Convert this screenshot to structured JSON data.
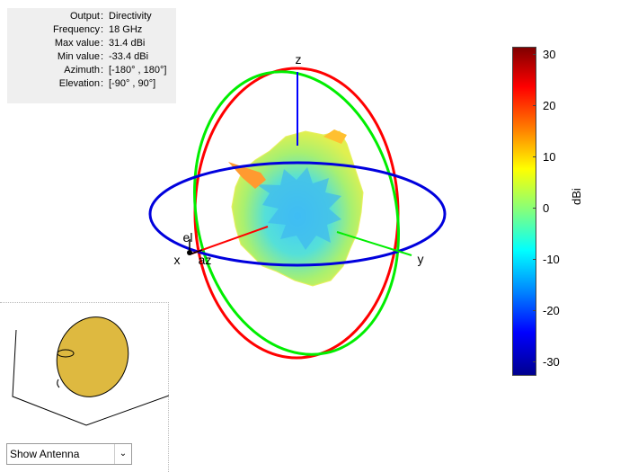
{
  "info": {
    "rows": [
      {
        "key": "Output",
        "value": "Directivity"
      },
      {
        "key": "Frequency",
        "value": "18 GHz"
      },
      {
        "key": "Max value",
        "value": "31.4 dBi"
      },
      {
        "key": "Min value",
        "value": "-33.4 dBi"
      },
      {
        "key": "Azimuth",
        "value": "[-180° , 180°]"
      },
      {
        "key": "Elevation",
        "value": "[-90° , 90°]"
      }
    ],
    "separator": ":"
  },
  "axes": {
    "z": "z",
    "x": "x",
    "y": "y",
    "el": "el",
    "az": "az"
  },
  "colorbar": {
    "label": "dBi",
    "ticks": [
      "30",
      "20",
      "10",
      "0",
      "-10",
      "-20",
      "-30"
    ],
    "range": [
      -33.4,
      31.4
    ]
  },
  "colors": {
    "azimuth_circle": "#0000dd",
    "elevation_circle_xz": "#ff0000",
    "elevation_circle_yz": "#00ee00",
    "antenna_fill": "#deb940"
  },
  "antenna_view": {
    "selected": "Show Antenna"
  }
}
